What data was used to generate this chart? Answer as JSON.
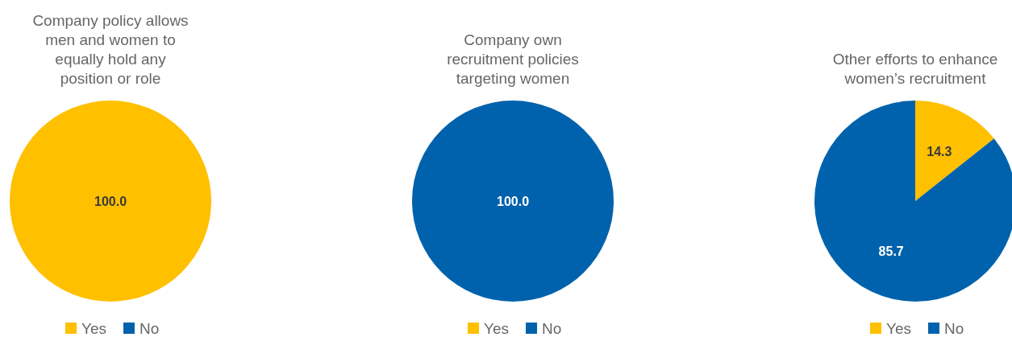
{
  "chart_data": [
    {
      "type": "pie",
      "title": "Company policy allows men and women to equally hold any position or role",
      "categories": [
        "Yes",
        "No"
      ],
      "values": [
        100,
        0
      ],
      "value_labels": [
        "100.0",
        null
      ],
      "colors": [
        "#ffc000",
        "#0062ac"
      ],
      "legend": "bottom"
    },
    {
      "type": "pie",
      "title": "Company own recruitment policies targeting women",
      "categories": [
        "Yes",
        "No"
      ],
      "values": [
        0,
        100
      ],
      "value_labels": [
        null,
        "100.0"
      ],
      "colors": [
        "#ffc000",
        "#0062ac"
      ],
      "legend": "bottom"
    },
    {
      "type": "pie",
      "title": "Other efforts to enhance women’s recruitment",
      "categories": [
        "Yes",
        "No"
      ],
      "values": [
        14.3,
        85.7
      ],
      "value_labels": [
        "14.3",
        "85.7"
      ],
      "colors": [
        "#ffc000",
        "#0062ac"
      ],
      "legend": "bottom"
    }
  ]
}
